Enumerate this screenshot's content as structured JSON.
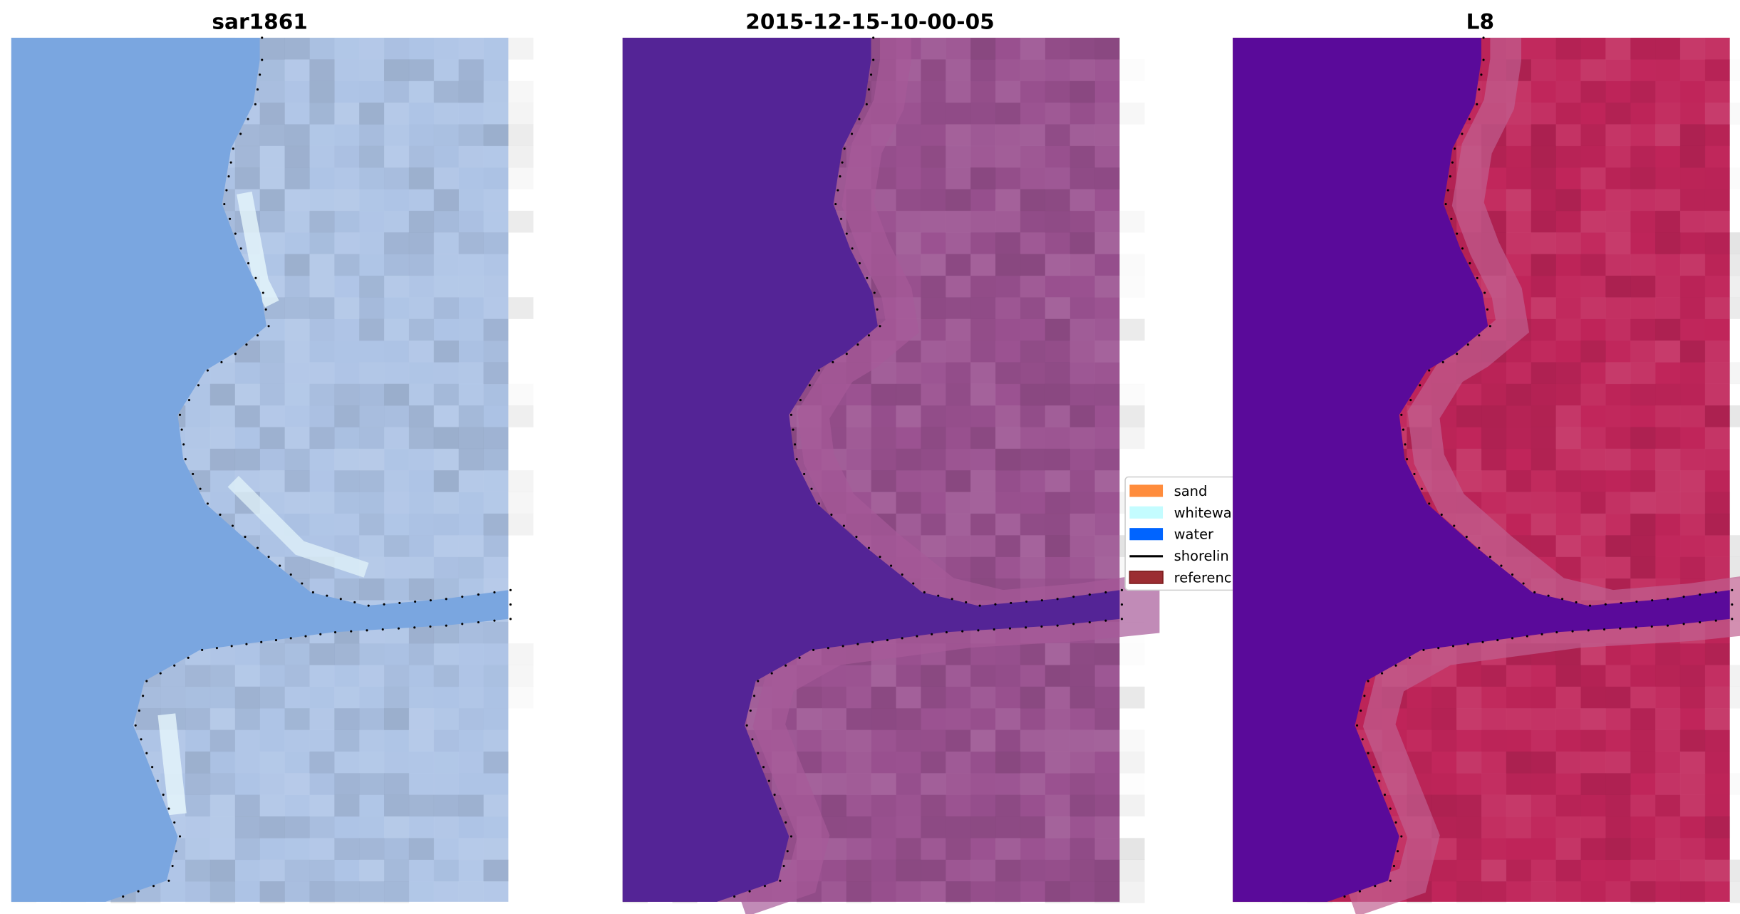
{
  "chart_data": [
    {
      "type": "heatmap",
      "title": "sar1861",
      "axes": "off",
      "colors": {
        "water": "#7aa6e0",
        "land": "#aec4e6",
        "whitewater": "#e6f6fb"
      }
    },
    {
      "type": "heatmap",
      "title": "2015-12-15-10-00-05",
      "axes": "off",
      "colors": {
        "water": "#542496",
        "land": "#9a5190",
        "edge": "#a65a98"
      }
    },
    {
      "type": "heatmap",
      "title": "L8",
      "axes": "off",
      "colors": {
        "water": "#5a0a9a",
        "land": "#c0255a",
        "edge": "#c06090"
      }
    }
  ],
  "legend": {
    "placement": "center-right of middle panel",
    "items": [
      {
        "label": "sand",
        "color": "#ff8c3c",
        "kind": "patch"
      },
      {
        "label": "whitewa",
        "color": "#c4fcff",
        "kind": "patch"
      },
      {
        "label": "water",
        "color": "#0064ff",
        "kind": "patch"
      },
      {
        "label": "shorelin",
        "color": "#000000",
        "kind": "line"
      },
      {
        "label": "referenc",
        "color": "#9b2d32",
        "kind": "patch"
      }
    ]
  }
}
